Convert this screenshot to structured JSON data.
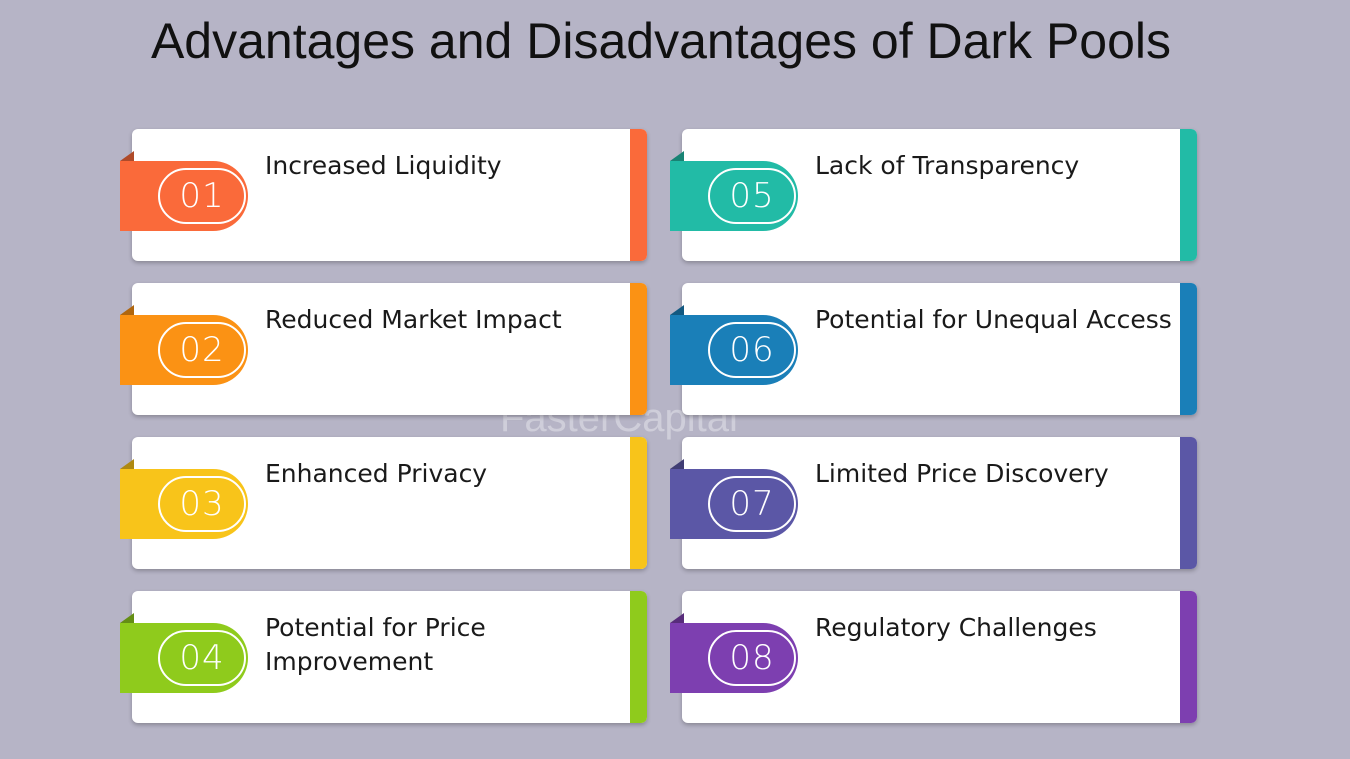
{
  "title": "Advantages and Disadvantages of Dark Pools",
  "watermark": "FasterCapital",
  "items": [
    {
      "number": "01",
      "label": "Increased Liquidity",
      "color": "#fa6a3a"
    },
    {
      "number": "02",
      "label": "Reduced Market Impact",
      "color": "#fb9214"
    },
    {
      "number": "03",
      "label": "Enhanced Privacy",
      "color": "#f8c41a"
    },
    {
      "number": "04",
      "label": "Potential for Price Improvement",
      "color": "#8fcb1c"
    },
    {
      "number": "05",
      "label": "Lack of Transparency",
      "color": "#22bba6"
    },
    {
      "number": "06",
      "label": "Potential for Unequal Access",
      "color": "#1a7fb8"
    },
    {
      "number": "07",
      "label": "Limited Price Discovery",
      "color": "#5b57a6"
    },
    {
      "number": "08",
      "label": "Regulatory Challenges",
      "color": "#7d3fb0"
    }
  ]
}
